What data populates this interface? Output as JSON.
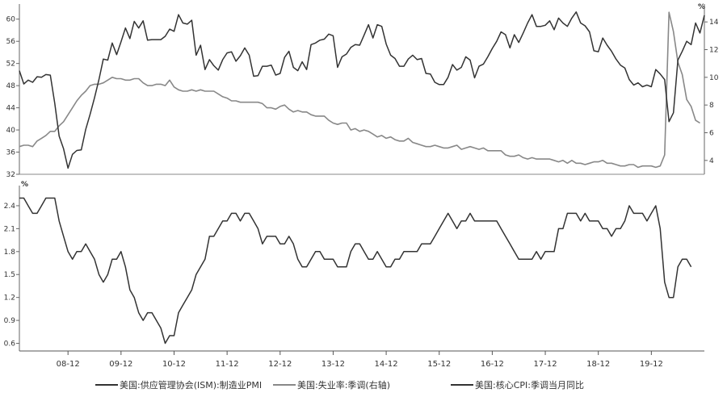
{
  "chart_data": [
    {
      "type": "line",
      "x_start": "2008-01",
      "xticklabels": [
        "08-12",
        "09-12",
        "10-12",
        "11-12",
        "12-12",
        "13-12",
        "14-12",
        "15-12",
        "16-12",
        "17-12",
        "18-12",
        "19-12"
      ],
      "left_axis": {
        "ylim": [
          32,
          62
        ],
        "ticks": [
          32,
          36,
          40,
          44,
          48,
          52,
          56,
          60
        ]
      },
      "right_axis": {
        "unit": "%",
        "ylim": [
          3,
          15
        ],
        "ticks": [
          4,
          6,
          8,
          10,
          12,
          14
        ]
      },
      "series": [
        {
          "name": "美国:供应管理协会(ISM):制造业PMI",
          "axis": "left",
          "color": "#333333",
          "values": [
            50.7,
            48.3,
            49.0,
            48.6,
            49.6,
            49.5,
            50.0,
            49.9,
            44.8,
            38.9,
            36.6,
            33.1,
            35.6,
            36.3,
            36.4,
            40.1,
            42.8,
            45.8,
            49.1,
            52.8,
            52.6,
            55.7,
            53.6,
            55.9,
            58.4,
            56.5,
            59.6,
            58.4,
            59.7,
            56.2,
            56.3,
            56.3,
            56.3,
            56.9,
            58.2,
            57.8,
            60.8,
            59.3,
            59.1,
            59.8,
            53.5,
            55.3,
            50.9,
            52.7,
            51.6,
            50.8,
            52.7,
            53.9,
            54.1,
            52.4,
            53.4,
            54.8,
            53.5,
            49.7,
            49.8,
            51.5,
            51.5,
            51.7,
            49.9,
            50.2,
            53.1,
            54.2,
            51.3,
            50.7,
            52.3,
            50.9,
            55.4,
            55.7,
            56.2,
            56.4,
            57.3,
            57.0,
            51.3,
            53.2,
            53.7,
            54.9,
            55.4,
            55.3,
            57.1,
            59.0,
            56.6,
            59.0,
            58.7,
            55.5,
            53.5,
            52.9,
            51.5,
            51.5,
            52.8,
            53.5,
            52.7,
            52.9,
            50.2,
            50.1,
            48.6,
            48.2,
            48.2,
            49.5,
            51.8,
            50.8,
            51.3,
            53.2,
            52.6,
            49.4,
            51.5,
            51.9,
            53.2,
            54.7,
            56.0,
            57.7,
            57.2,
            54.8,
            57.2,
            55.8,
            57.5,
            59.3,
            60.8,
            58.7,
            58.7,
            58.9,
            59.7,
            58.1,
            60.2,
            59.3,
            58.7,
            60.2,
            61.3,
            59.3,
            58.8,
            57.7,
            54.3,
            54.1,
            56.6,
            55.3,
            54.2,
            52.8,
            51.7,
            51.2,
            49.1,
            48.1,
            48.5,
            47.8,
            48.1,
            47.8,
            50.9,
            50.1,
            49.1,
            41.5,
            43.1,
            52.6,
            54.2,
            56.0,
            55.4,
            59.3,
            57.5,
            60.7
          ]
        },
        {
          "name": "美国:失业率:季调(右轴)",
          "axis": "right",
          "color": "#888888",
          "values": [
            5.0,
            5.1,
            5.1,
            5.0,
            5.4,
            5.6,
            5.8,
            6.1,
            6.1,
            6.5,
            6.8,
            7.3,
            7.8,
            8.3,
            8.7,
            9.0,
            9.4,
            9.5,
            9.5,
            9.6,
            9.8,
            10.0,
            9.9,
            9.9,
            9.8,
            9.8,
            9.9,
            9.9,
            9.6,
            9.4,
            9.4,
            9.5,
            9.5,
            9.4,
            9.8,
            9.3,
            9.1,
            9.0,
            9.0,
            9.1,
            9.0,
            9.1,
            9.0,
            9.0,
            9.0,
            8.8,
            8.6,
            8.5,
            8.3,
            8.3,
            8.2,
            8.2,
            8.2,
            8.2,
            8.2,
            8.1,
            7.8,
            7.8,
            7.7,
            7.9,
            8.0,
            7.7,
            7.5,
            7.6,
            7.5,
            7.5,
            7.3,
            7.2,
            7.2,
            7.2,
            6.9,
            6.7,
            6.6,
            6.7,
            6.7,
            6.2,
            6.3,
            6.1,
            6.2,
            6.1,
            5.9,
            5.7,
            5.8,
            5.6,
            5.7,
            5.5,
            5.4,
            5.4,
            5.6,
            5.3,
            5.2,
            5.1,
            5.0,
            5.0,
            5.1,
            5.0,
            4.9,
            4.9,
            5.0,
            5.1,
            4.8,
            4.9,
            5.0,
            4.9,
            4.8,
            4.9,
            4.7,
            4.7,
            4.7,
            4.7,
            4.4,
            4.3,
            4.3,
            4.4,
            4.2,
            4.1,
            4.2,
            4.1,
            4.1,
            4.1,
            4.1,
            4.0,
            3.9,
            4.0,
            3.8,
            4.0,
            3.8,
            3.8,
            3.7,
            3.8,
            3.9,
            3.9,
            4.0,
            3.8,
            3.8,
            3.7,
            3.6,
            3.6,
            3.7,
            3.7,
            3.5,
            3.6,
            3.6,
            3.6,
            3.5,
            3.6,
            4.4,
            14.7,
            13.3,
            11.1,
            10.2,
            8.4,
            7.9,
            6.9,
            6.7
          ]
        }
      ]
    },
    {
      "type": "line",
      "x_start": "2008-01",
      "xticklabels": [
        "08-12",
        "09-12",
        "10-12",
        "11-12",
        "12-12",
        "13-12",
        "14-12",
        "15-12",
        "16-12",
        "17-12",
        "18-12",
        "19-12"
      ],
      "left_axis": {
        "unit": "%",
        "ylim": [
          0.5,
          2.6
        ],
        "ticks": [
          0.6,
          0.9,
          1.2,
          1.5,
          1.8,
          2.1,
          2.4
        ]
      },
      "series": [
        {
          "name": "美国:核心CPI:季调当月同比",
          "axis": "left",
          "color": "#333333",
          "values": [
            2.5,
            2.5,
            2.4,
            2.3,
            2.3,
            2.4,
            2.5,
            2.5,
            2.5,
            2.2,
            2.0,
            1.8,
            1.7,
            1.8,
            1.8,
            1.9,
            1.8,
            1.7,
            1.5,
            1.4,
            1.5,
            1.7,
            1.7,
            1.8,
            1.6,
            1.3,
            1.2,
            1.0,
            0.9,
            1.0,
            1.0,
            0.9,
            0.8,
            0.6,
            0.7,
            0.7,
            1.0,
            1.1,
            1.2,
            1.3,
            1.5,
            1.6,
            1.7,
            2.0,
            2.0,
            2.1,
            2.2,
            2.2,
            2.3,
            2.3,
            2.2,
            2.3,
            2.3,
            2.2,
            2.1,
            1.9,
            2.0,
            2.0,
            2.0,
            1.9,
            1.9,
            2.0,
            1.9,
            1.7,
            1.6,
            1.6,
            1.7,
            1.8,
            1.8,
            1.7,
            1.7,
            1.7,
            1.6,
            1.6,
            1.6,
            1.8,
            1.9,
            1.9,
            1.8,
            1.7,
            1.7,
            1.8,
            1.7,
            1.6,
            1.6,
            1.7,
            1.7,
            1.8,
            1.8,
            1.8,
            1.8,
            1.9,
            1.9,
            1.9,
            2.0,
            2.1,
            2.2,
            2.3,
            2.2,
            2.1,
            2.2,
            2.2,
            2.3,
            2.2,
            2.2,
            2.2,
            2.2,
            2.2,
            2.2,
            2.1,
            2.0,
            1.9,
            1.8,
            1.7,
            1.7,
            1.7,
            1.7,
            1.8,
            1.7,
            1.8,
            1.8,
            1.8,
            2.1,
            2.1,
            2.3,
            2.3,
            2.3,
            2.2,
            2.3,
            2.2,
            2.2,
            2.2,
            2.1,
            2.1,
            2.0,
            2.1,
            2.1,
            2.2,
            2.4,
            2.3,
            2.3,
            2.3,
            2.2,
            2.3,
            2.4,
            2.1,
            1.4,
            1.2,
            1.2,
            1.6,
            1.7,
            1.7,
            1.6
          ]
        }
      ]
    }
  ],
  "legend": [
    {
      "label": "美国:供应管理协会(ISM):制造业PMI",
      "color": "#333333"
    },
    {
      "label": "美国:失业率:季调(右轴)",
      "color": "#888888"
    },
    {
      "label": "美国:核心CPI:季调当月同比",
      "color": "#333333"
    }
  ]
}
